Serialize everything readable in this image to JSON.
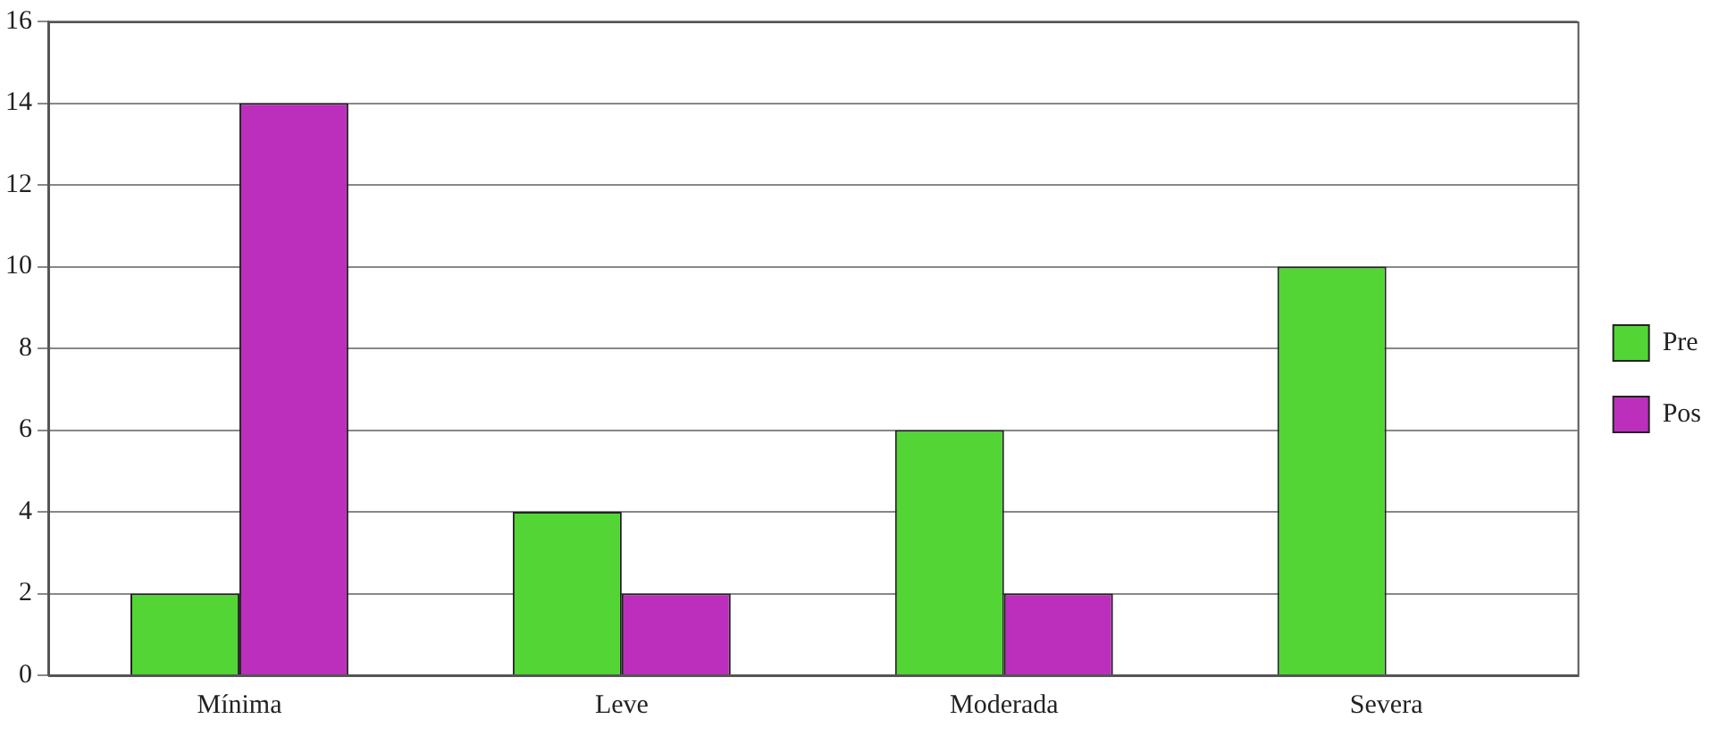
{
  "chart_data": {
    "type": "bar",
    "categories": [
      "Mínima",
      "Leve",
      "Moderada",
      "Severa"
    ],
    "series": [
      {
        "name": "Pre",
        "color": "#52d535",
        "values": [
          2,
          4,
          6,
          10
        ]
      },
      {
        "name": "Pos",
        "color": "#bc2fbc",
        "values": [
          14,
          2,
          2,
          0
        ]
      }
    ],
    "ylim": [
      0,
      16
    ],
    "yticks": [
      0,
      2,
      4,
      6,
      8,
      10,
      12,
      14,
      16
    ],
    "grid": "y",
    "legend": "right"
  }
}
